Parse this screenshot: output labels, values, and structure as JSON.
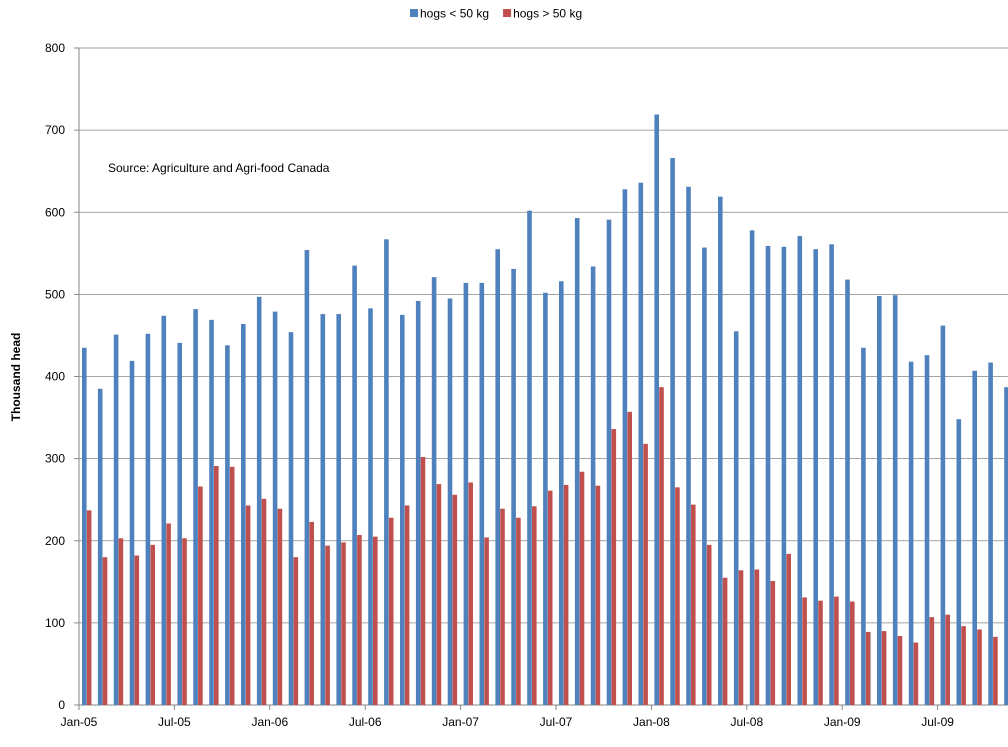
{
  "chart_data": {
    "type": "bar",
    "annotation": "Source: Agriculture and Agri-food Canada",
    "y_label": "Thousand head",
    "categories": [
      "Jan-05",
      null,
      null,
      null,
      null,
      null,
      "Jul-05",
      null,
      null,
      null,
      null,
      null,
      "Jan-06",
      null,
      null,
      null,
      null,
      null,
      "Jul-06",
      null,
      null,
      null,
      null,
      null,
      "Jan-07",
      null,
      null,
      null,
      null,
      null,
      "Jul-07",
      null,
      null,
      null,
      null,
      null,
      "Jan-08",
      null,
      null,
      null,
      null,
      null,
      "Jul-08",
      null,
      null,
      null,
      null,
      null,
      "Jan-09",
      null,
      null,
      null,
      null,
      null,
      "Jul-09",
      null,
      null,
      null,
      null
    ],
    "series": [
      {
        "name": "hogs < 50 kg",
        "color": "#4f81bd",
        "values": [
          435,
          385,
          451,
          419,
          452,
          474,
          441,
          482,
          469,
          438,
          464,
          497,
          479,
          454,
          554,
          476,
          476,
          535,
          483,
          567,
          475,
          492,
          521,
          495,
          514,
          514,
          555,
          531,
          602,
          502,
          516,
          593,
          534,
          591,
          628,
          636,
          719,
          666,
          631,
          557,
          619,
          455,
          578,
          559,
          558,
          571,
          555,
          561,
          518,
          435,
          498,
          499,
          418,
          426,
          462,
          348,
          407,
          417,
          387
        ]
      },
      {
        "name": "hogs > 50 kg",
        "color": "#c0504d",
        "values": [
          237,
          180,
          203,
          182,
          195,
          221,
          203,
          266,
          291,
          290,
          243,
          251,
          239,
          180,
          223,
          194,
          198,
          207,
          205,
          228,
          243,
          302,
          269,
          256,
          271,
          204,
          239,
          228,
          242,
          261,
          268,
          284,
          267,
          336,
          357,
          318,
          387,
          265,
          244,
          195,
          155,
          164,
          165,
          151,
          184,
          131,
          127,
          132,
          126,
          89,
          90,
          84,
          76,
          107,
          110,
          96,
          92,
          83,
          null
        ]
      }
    ],
    "ylim": [
      0,
      800
    ],
    "yticks": [
      0,
      100,
      200,
      300,
      400,
      500,
      600,
      700,
      800
    ],
    "grid": true,
    "legend": "top"
  }
}
